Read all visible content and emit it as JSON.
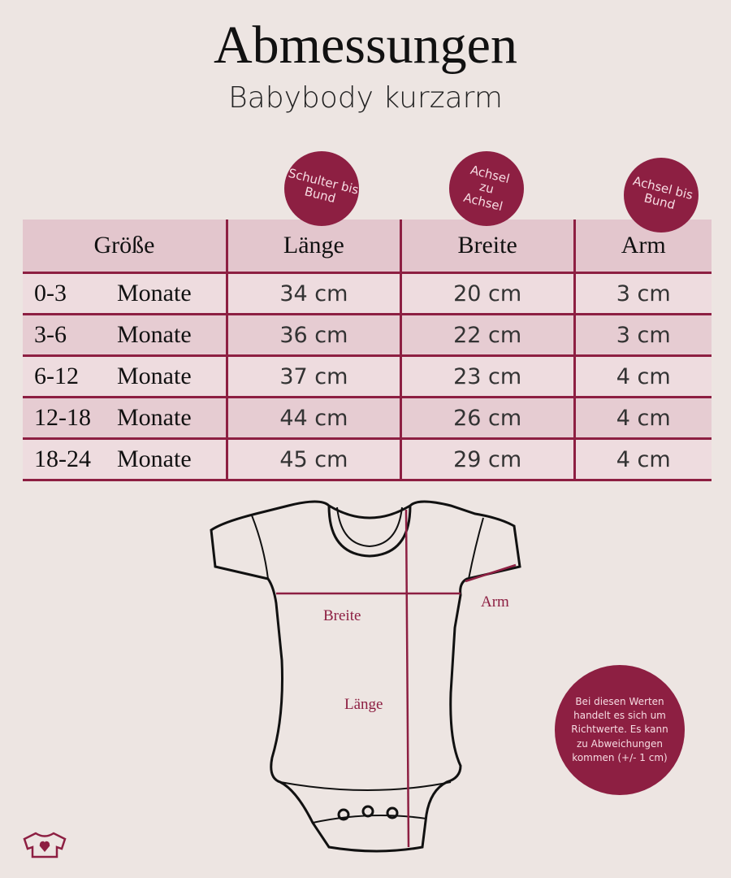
{
  "header": {
    "title": "Abmessungen",
    "subtitle": "Babybody kurzarm"
  },
  "badges": [
    "Schulter bis Bund",
    "Achsel zu Achsel",
    "Achsel bis Bund"
  ],
  "table": {
    "headers": [
      "Größe",
      "Länge",
      "Breite",
      "Arm"
    ],
    "rows": [
      {
        "range": "0-3",
        "unit": "Monate",
        "laenge": "34 cm",
        "breite": "20 cm",
        "arm": "3 cm"
      },
      {
        "range": "3-6",
        "unit": "Monate",
        "laenge": "36 cm",
        "breite": "22 cm",
        "arm": "3 cm"
      },
      {
        "range": "6-12",
        "unit": "Monate",
        "laenge": "37 cm",
        "breite": "23 cm",
        "arm": "4 cm"
      },
      {
        "range": "12-18",
        "unit": "Monate",
        "laenge": "44 cm",
        "breite": "26 cm",
        "arm": "4 cm"
      },
      {
        "range": "18-24",
        "unit": "Monate",
        "laenge": "45 cm",
        "breite": "29 cm",
        "arm": "4 cm"
      }
    ]
  },
  "diagram": {
    "breite": "Breite",
    "laenge": "Länge",
    "arm": "Arm"
  },
  "note": "Bei diesen Werten handelt es sich um Richtwerte. Es kann zu Abweichungen kommen (+/- 1 cm)",
  "colors": {
    "accent": "#8d1f42",
    "background": "#ede5e2",
    "header_row": "#e3c6cd"
  },
  "logo": "shirt-heart-icon"
}
